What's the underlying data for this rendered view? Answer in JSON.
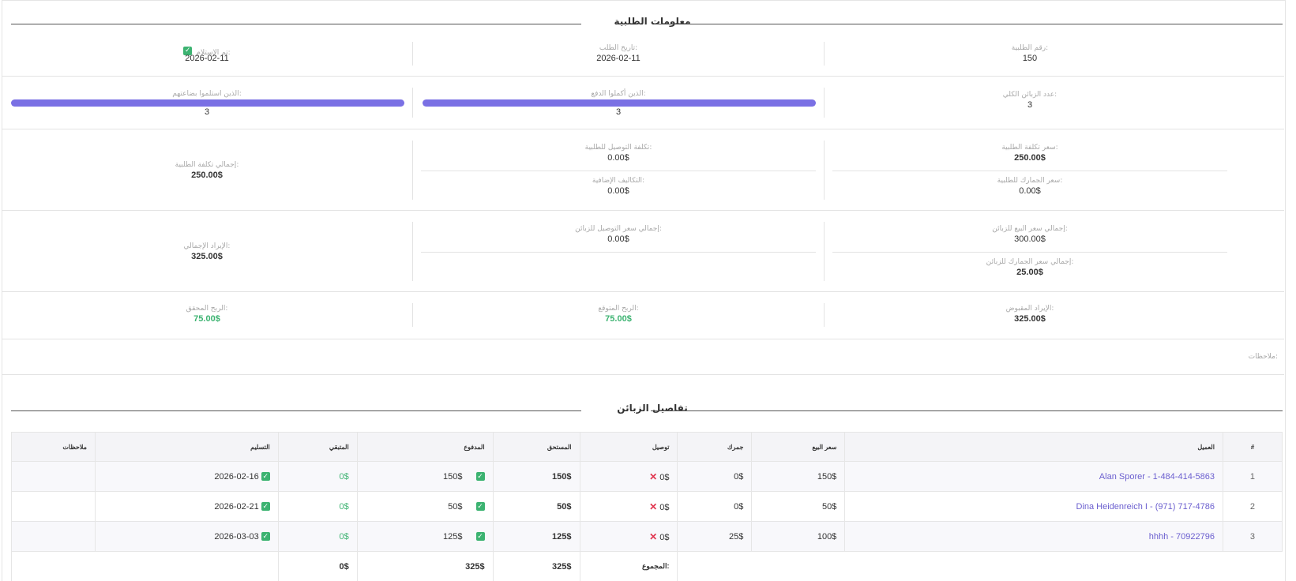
{
  "order_info": {
    "title": "معلومات الطلبية",
    "order_number_label": "رقم الطلبية:",
    "order_number": "150",
    "order_date_label": "تاريخ الطلب:",
    "order_date": "2026-02-11",
    "received_label": "تم الإستلام:",
    "received_date": "2026-02-11",
    "total_customers_label": "عدد الزبائن الكلي:",
    "total_customers": "3",
    "completed_payment_label": "الذين أكملوا الدفع:",
    "completed_payment": "3",
    "received_goods_label": "الذين استلموا بضاعتهم:",
    "received_goods": "3",
    "order_cost_price_label": "سعر تكلفة الطلبية:",
    "order_cost_price": "250.00$",
    "order_customs_price_label": "سعر الجمارك للطلبية:",
    "order_customs_price": "0.00$",
    "order_delivery_cost_label": "تكلفة التوصيل للطلبية:",
    "order_delivery_cost": "0.00$",
    "additional_costs_label": "التكاليف الإضافية:",
    "additional_costs": "0.00$",
    "total_order_cost_label": "إجمالي تكلفة الطلبية:",
    "total_order_cost": "250.00$",
    "total_customer_sale_label": "إجمالي سعر البيع للزبائن:",
    "total_customer_sale": "300.00$",
    "total_customer_customs_label": "إجمالي سعر الجمارك للزبائن:",
    "total_customer_customs": "25.00$",
    "total_customer_delivery_label": "إجمالي سعر التوصيل للزبائن:",
    "total_customer_delivery": "0.00$",
    "total_revenue_label": "الإيراد الإجمالي:",
    "total_revenue": "325.00$",
    "collected_revenue_label": "الإيراد المقبوض:",
    "collected_revenue": "325.00$",
    "expected_profit_label": "الربح المتوقع:",
    "expected_profit": "75.00$",
    "achieved_profit_label": "الربح المحقق:",
    "achieved_profit": "75.00$",
    "notes_label": "ملاحظات:",
    "check_icon": "check-icon",
    "progress_completed_payment": 1.0,
    "progress_received_goods": 1.0
  },
  "customers": {
    "title": "تفاصيل الزبائن",
    "columns": [
      "#",
      "العميل",
      "سعر البيع",
      "جمرك",
      "توصيل",
      "المستحق",
      "المدفوع",
      "المتبقي",
      "التسليم",
      "ملاحظات"
    ],
    "rows": [
      {
        "n": "1",
        "customer": "Alan Sporer - 1-484-414-5863",
        "sale": "150$",
        "customs": "0$",
        "delivery": "0$",
        "due": "150$",
        "paid": "150$",
        "remaining": "0$",
        "delivery_date": "2026-02-16",
        "notes": ""
      },
      {
        "n": "2",
        "customer": "Dina Heidenreich I - (971) 717-4786",
        "sale": "50$",
        "customs": "0$",
        "delivery": "0$",
        "due": "50$",
        "paid": "50$",
        "remaining": "0$",
        "delivery_date": "2026-02-21",
        "notes": ""
      },
      {
        "n": "3",
        "customer": "hhhh - 70922796",
        "sale": "100$",
        "customs": "25$",
        "delivery": "0$",
        "due": "125$",
        "paid": "125$",
        "remaining": "0$",
        "delivery_date": "2026-03-03",
        "notes": ""
      }
    ],
    "totals_label": "المجموع:",
    "total_due": "325$",
    "total_paid": "325$",
    "total_remaining": "0$"
  },
  "colors": {
    "accent": "#7a70e4",
    "success": "#3cb371",
    "danger": "#e0334d",
    "link": "#6b5fcf"
  }
}
